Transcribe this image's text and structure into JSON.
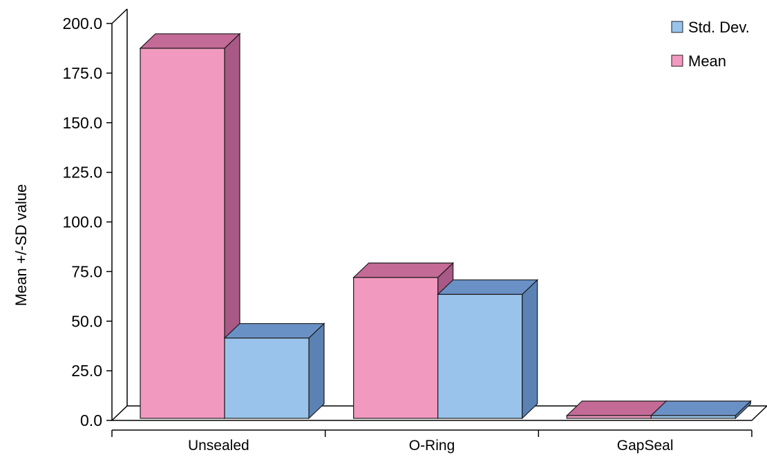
{
  "chart_data": {
    "type": "bar",
    "title": "",
    "xlabel": "",
    "ylabel": "Mean +/-SD value",
    "ylim": [
      0,
      200
    ],
    "y_ticks": [
      "0.0",
      "25.0",
      "50.0",
      "75.0",
      "100.0",
      "125.0",
      "150.0",
      "175.0",
      "200.0"
    ],
    "categories": [
      "Unsealed",
      "O-Ring",
      "GapSeal"
    ],
    "series": [
      {
        "name": "Mean",
        "values": [
          187.5,
          72.0,
          1.5
        ]
      },
      {
        "name": "Std. Dev.",
        "values": [
          41.5,
          63.5,
          1.5
        ]
      }
    ],
    "style": "3d",
    "grid": false,
    "legend_position": "top-right"
  },
  "legend": {
    "std_label": "Std. Dev.",
    "mean_label": "Mean"
  },
  "colors": {
    "mean_front": "#F299C0",
    "mean_top": "#C46A97",
    "mean_side": "#A85986",
    "std_front": "#99C3EA",
    "std_top": "#6A91C6",
    "std_side": "#5B82B2"
  }
}
